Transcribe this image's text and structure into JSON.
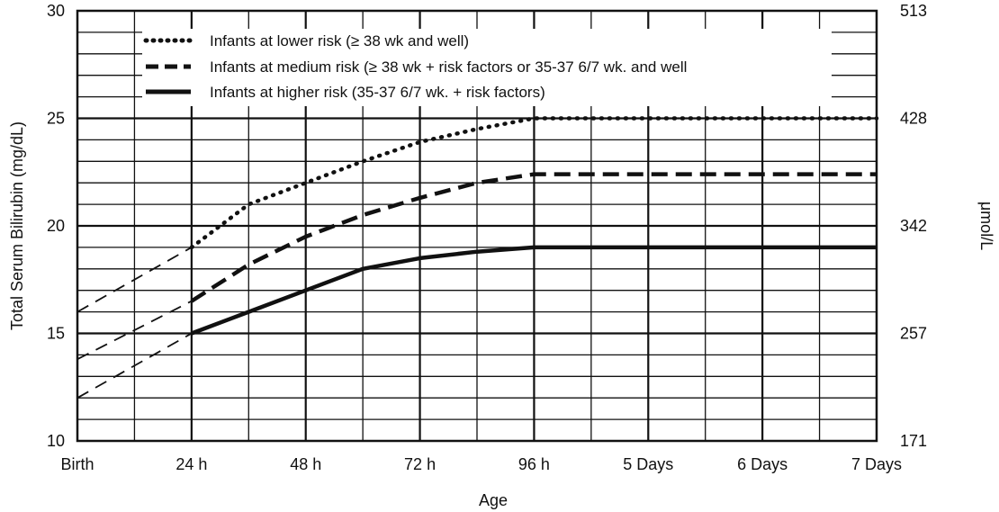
{
  "chart_data": {
    "type": "line",
    "xlabel": "Age",
    "ylabel": "Total Serum Bilirubin (mg/dL)",
    "ylabel_right": "μmol/L",
    "x_categories": [
      "Birth",
      "24 h",
      "48 h",
      "72 h",
      "96 h",
      "5 Days",
      "6 Days",
      "7 Days"
    ],
    "x_range": [
      0,
      7
    ],
    "ylim": [
      10,
      30
    ],
    "y_ticks": [
      "10",
      "15",
      "20",
      "25",
      "30"
    ],
    "y_right_ticks": [
      "171",
      "257",
      "342",
      "428",
      "513"
    ],
    "y_right_tick_values": [
      10,
      15,
      20,
      25,
      30
    ],
    "grid": true,
    "legend_position": "top-left",
    "series": [
      {
        "name": "Infants at lower risk (≥ 38 wk and well)",
        "style": "dotted",
        "extrapolated": [
          [
            0,
            16
          ],
          [
            1,
            19
          ]
        ],
        "values": [
          [
            1,
            19
          ],
          [
            1.5,
            21
          ],
          [
            2,
            22
          ],
          [
            2.5,
            23
          ],
          [
            3,
            23.9
          ],
          [
            3.5,
            24.5
          ],
          [
            4,
            25
          ],
          [
            5,
            25
          ],
          [
            6,
            25
          ],
          [
            7,
            25
          ]
        ]
      },
      {
        "name": "Infants at medium risk (≥ 38 wk + risk factors or 35-37 6/7 wk. and well",
        "style": "dashed",
        "extrapolated": [
          [
            0,
            13.8
          ],
          [
            1,
            16.5
          ]
        ],
        "values": [
          [
            1,
            16.5
          ],
          [
            1.5,
            18.2
          ],
          [
            2,
            19.5
          ],
          [
            2.5,
            20.5
          ],
          [
            3,
            21.3
          ],
          [
            3.5,
            22
          ],
          [
            4,
            22.4
          ],
          [
            5,
            22.4
          ],
          [
            6,
            22.4
          ],
          [
            7,
            22.4
          ]
        ]
      },
      {
        "name": "Infants at higher risk (35-37 6/7 wk. + risk factors)",
        "style": "solid",
        "extrapolated": [
          [
            0,
            12
          ],
          [
            1,
            15
          ]
        ],
        "values": [
          [
            1,
            15
          ],
          [
            1.5,
            16
          ],
          [
            2,
            17
          ],
          [
            2.5,
            18
          ],
          [
            3,
            18.5
          ],
          [
            3.5,
            18.8
          ],
          [
            4,
            19
          ],
          [
            5,
            19
          ],
          [
            6,
            19
          ],
          [
            7,
            19
          ]
        ]
      }
    ]
  }
}
